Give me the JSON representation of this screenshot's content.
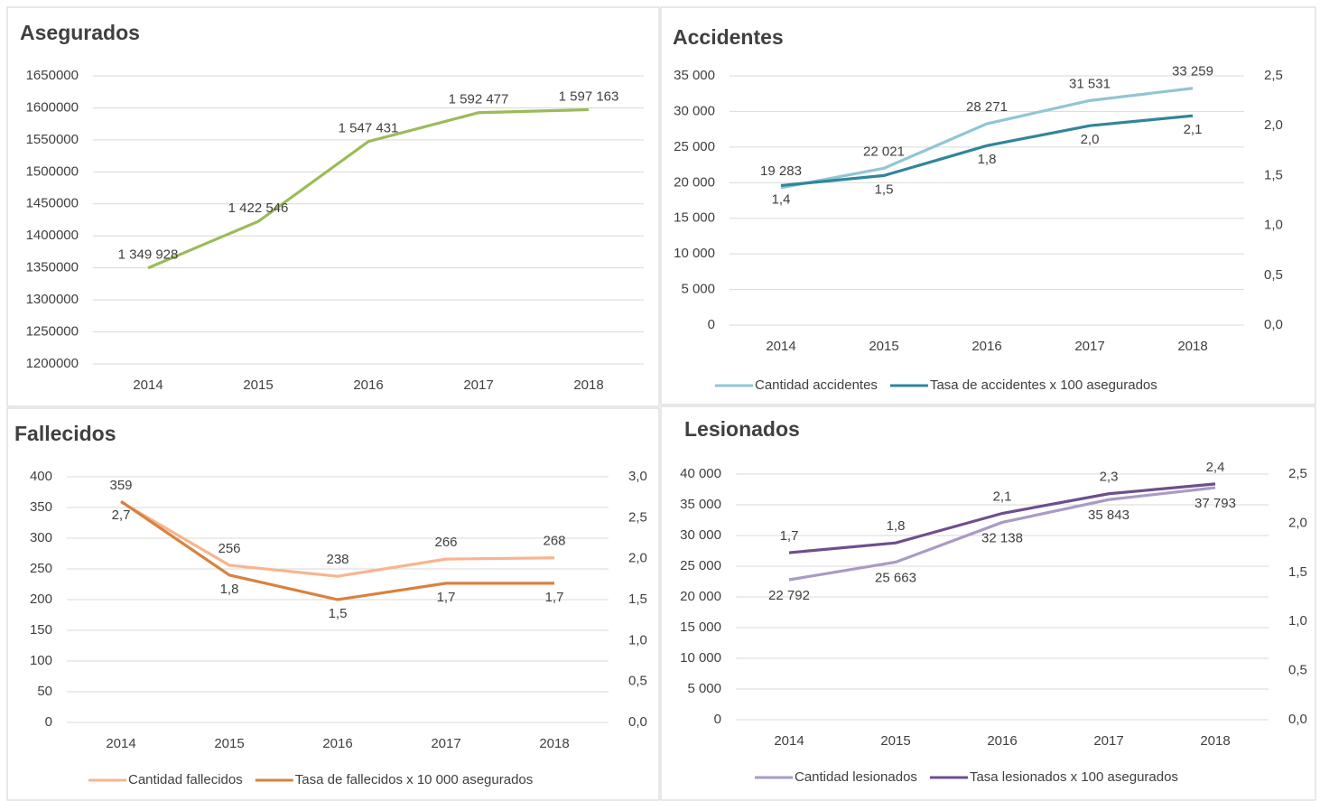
{
  "chart_data": [
    {
      "type": "line",
      "title": "Asegurados",
      "categories": [
        "2014",
        "2015",
        "2016",
        "2017",
        "2018"
      ],
      "values": [
        1349928,
        1422546,
        1547431,
        1592477,
        1597163
      ],
      "value_labels": [
        "1 349 928",
        "1 422 546",
        "1 547 431",
        "1 592 477",
        "1 597 163"
      ],
      "color": "#9bbb59",
      "ylim": [
        1200000,
        1650000
      ],
      "yticks": [
        1200000,
        1250000,
        1300000,
        1350000,
        1400000,
        1450000,
        1500000,
        1550000,
        1600000,
        1650000
      ],
      "grid": true
    },
    {
      "type": "line",
      "title": "Accidentes",
      "categories": [
        "2014",
        "2015",
        "2016",
        "2017",
        "2018"
      ],
      "series": [
        {
          "name": "Cantidad accidentes",
          "color": "#92c5d4",
          "values": [
            19283,
            22021,
            28271,
            31531,
            33259
          ],
          "value_labels": [
            "19 283",
            "22 021",
            "28 271",
            "31 531",
            "33 259"
          ]
        },
        {
          "name": "Tasa de accidentes x 100 asegurados",
          "color": "#31859c",
          "axis": "y2",
          "values": [
            1.4,
            1.5,
            1.8,
            2.0,
            2.1
          ],
          "value_labels": [
            "1,4",
            "1,5",
            "1,8",
            "2,0",
            "2,1"
          ]
        }
      ],
      "ylim": [
        0,
        35000
      ],
      "yticks": [
        0,
        {
          "value": 5000,
          "label": "5 000"
        },
        {
          "value": 10000,
          "label": "10 000"
        },
        {
          "value": 15000,
          "label": "15 000"
        },
        {
          "value": 20000,
          "label": "20 000"
        },
        {
          "value": 25000,
          "label": "25 000"
        },
        {
          "value": 30000,
          "label": "30 000"
        },
        {
          "value": 35000,
          "label": "35 000"
        }
      ],
      "y2lim": [
        0,
        2.5
      ],
      "y2ticks": [
        {
          "value": 0,
          "label": "0,0"
        },
        {
          "value": 0.5,
          "label": "0,5"
        },
        {
          "value": 1,
          "label": "1,0"
        },
        {
          "value": 1.5,
          "label": "1,5"
        },
        {
          "value": 2,
          "label": "2,0"
        },
        {
          "value": 2.5,
          "label": "2,5"
        }
      ],
      "grid": true,
      "legend": "bottom"
    },
    {
      "type": "line",
      "title": "Fallecidos",
      "categories": [
        "2014",
        "2015",
        "2016",
        "2017",
        "2018"
      ],
      "series": [
        {
          "name": "Cantidad fallecidos",
          "color": "#f7b58f",
          "values": [
            359,
            256,
            238,
            266,
            268
          ]
        },
        {
          "name": "Tasa de fallecidos x 10 000 asegurados",
          "color": "#d9813f",
          "axis": "y2",
          "values": [
            2.7,
            1.8,
            1.5,
            1.7,
            1.7
          ],
          "value_labels": [
            "2,7",
            "1,8",
            "1,5",
            "1,7",
            "1,7"
          ]
        }
      ],
      "ylim": [
        0,
        400
      ],
      "yticks": [
        0,
        50,
        100,
        150,
        200,
        250,
        300,
        350,
        400
      ],
      "y2lim": [
        0,
        3
      ],
      "y2ticks": [
        {
          "value": 0,
          "label": "0,0"
        },
        {
          "value": 0.5,
          "label": "0,5"
        },
        {
          "value": 1,
          "label": "1,0"
        },
        {
          "value": 1.5,
          "label": "1,5"
        },
        {
          "value": 2,
          "label": "2,0"
        },
        {
          "value": 2.5,
          "label": "2,5"
        },
        {
          "value": 3,
          "label": "3,0"
        }
      ],
      "grid": true,
      "legend": "bottom"
    },
    {
      "type": "line",
      "title": "Lesionados",
      "categories": [
        "2014",
        "2015",
        "2016",
        "2017",
        "2018"
      ],
      "series": [
        {
          "name": "Cantidad lesionados",
          "color": "#a99bc4",
          "values": [
            22792,
            25663,
            32138,
            35843,
            37793
          ],
          "value_labels": [
            "22 792",
            "25 663",
            "32 138",
            "35 843",
            "37 793"
          ]
        },
        {
          "name": "Tasa lesionados x 100 asegurados",
          "color": "#6e4e8e",
          "axis": "y2",
          "values": [
            1.7,
            1.8,
            2.1,
            2.3,
            2.4
          ],
          "value_labels": [
            "1,7",
            "1,8",
            "2,1",
            "2,3",
            "2,4"
          ]
        }
      ],
      "ylim": [
        0,
        40000
      ],
      "yticks": [
        0,
        {
          "value": 5000,
          "label": "5 000"
        },
        {
          "value": 10000,
          "label": "10 000"
        },
        {
          "value": 15000,
          "label": "15 000"
        },
        {
          "value": 20000,
          "label": "20 000"
        },
        {
          "value": 25000,
          "label": "25 000"
        },
        {
          "value": 30000,
          "label": "30 000"
        },
        {
          "value": 35000,
          "label": "35 000"
        },
        {
          "value": 40000,
          "label": "40 000"
        }
      ],
      "y2lim": [
        0,
        2.5
      ],
      "y2ticks": [
        {
          "value": 0,
          "label": "0,0"
        },
        {
          "value": 0.5,
          "label": "0,5"
        },
        {
          "value": 1,
          "label": "1,0"
        },
        {
          "value": 1.5,
          "label": "1,5"
        },
        {
          "value": 2,
          "label": "2,0"
        },
        {
          "value": 2.5,
          "label": "2,5"
        }
      ],
      "grid": true,
      "legend": "bottom"
    }
  ]
}
